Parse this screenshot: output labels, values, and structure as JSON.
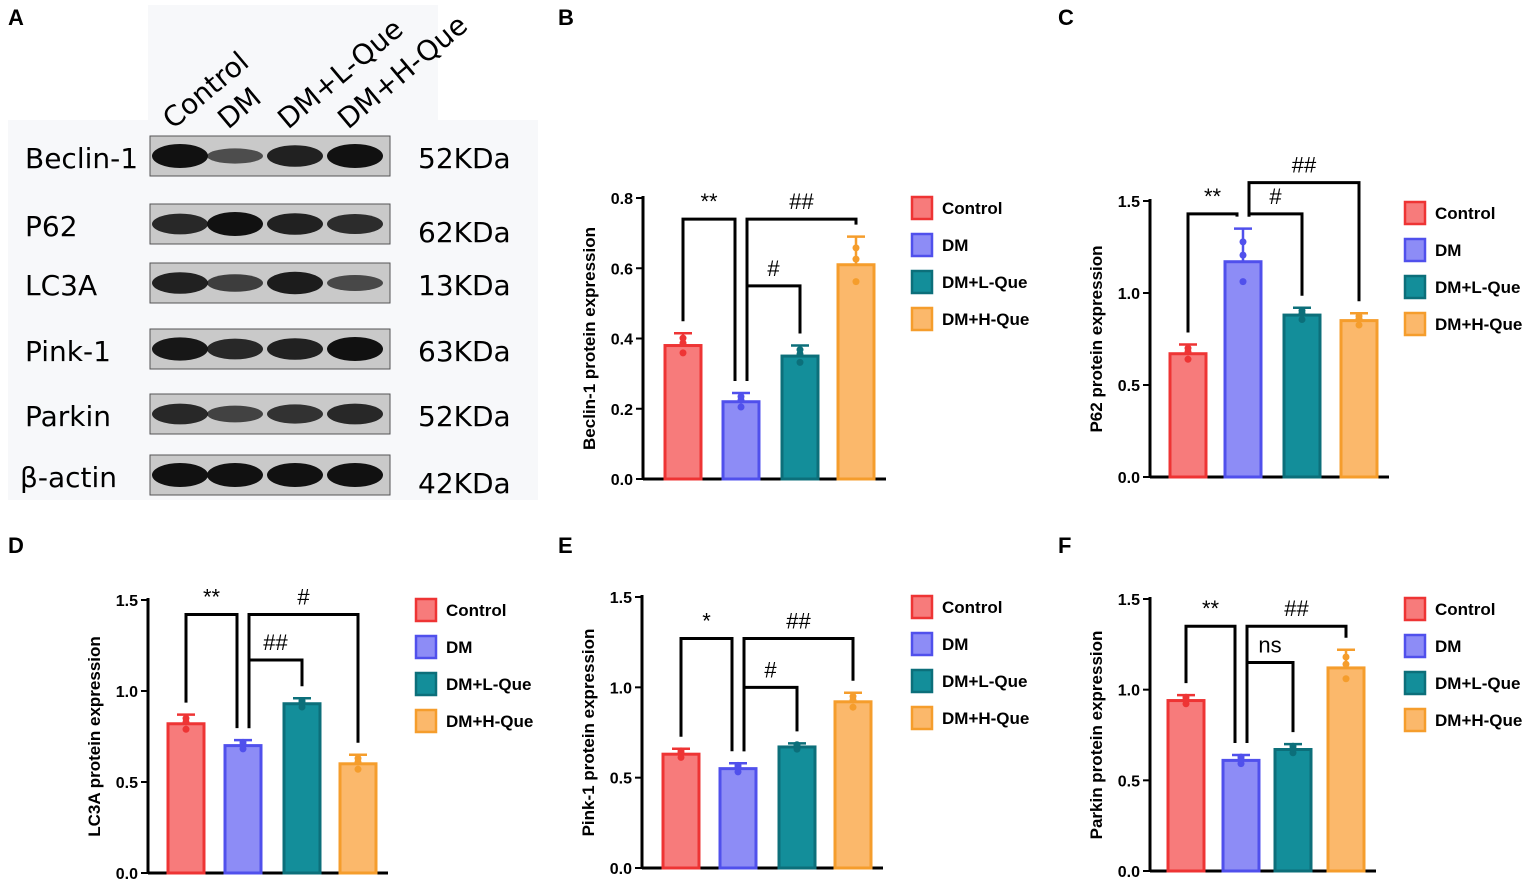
{
  "panel_labels": [
    "A",
    "B",
    "C",
    "D",
    "E",
    "F"
  ],
  "blot": {
    "lanes": [
      "Control",
      "DM",
      "DM+L-Que",
      "DM+H-Que"
    ],
    "rows": [
      {
        "protein": "Beclin-1",
        "size": "52KDa",
        "intensity": [
          1,
          0.45,
          0.85,
          1
        ]
      },
      {
        "protein": "P62",
        "size": "62KDa",
        "intensity": [
          0.8,
          1,
          0.85,
          0.75
        ]
      },
      {
        "protein": "LC3A",
        "size": "13KDa",
        "intensity": [
          0.85,
          0.6,
          0.9,
          0.5
        ]
      },
      {
        "protein": "Pink-1",
        "size": "63KDa",
        "intensity": [
          0.95,
          0.8,
          0.85,
          1
        ]
      },
      {
        "protein": "Parkin",
        "size": "52KDa",
        "intensity": [
          0.8,
          0.55,
          0.7,
          0.8
        ]
      },
      {
        "protein": "β-actin",
        "size": "42KDa",
        "intensity": [
          1,
          1,
          1,
          1
        ]
      }
    ]
  },
  "colors": {
    "fill": [
      "#f77b7b",
      "#8d8cf6",
      "#138e9a",
      "#fbb86b"
    ],
    "stroke": [
      "#ee3434",
      "#5050ec",
      "#0c6f7a",
      "#f59d2c"
    ]
  },
  "chart_data": [
    {
      "panel": "B",
      "type": "bar",
      "categories": [
        "Control",
        "DM",
        "DM+L-Que",
        "DM+H-Que"
      ],
      "values": [
        0.38,
        0.22,
        0.35,
        0.61
      ],
      "errors": [
        0.035,
        0.025,
        0.03,
        0.08
      ],
      "ylabel": "Beclin-1 protein expression",
      "ylim": [
        0,
        0.8
      ],
      "yticks": [
        "0.0",
        "0.2",
        "0.4",
        "0.6",
        "0.8"
      ],
      "legend": "right",
      "comparisons": [
        {
          "a": 0,
          "b": 1,
          "label": "**"
        },
        {
          "a": 1,
          "b": 2,
          "label": "#"
        },
        {
          "a": 1,
          "b": 3,
          "label": "##"
        }
      ]
    },
    {
      "panel": "C",
      "type": "bar",
      "categories": [
        "Control",
        "DM",
        "DM+L-Que",
        "DM+H-Que"
      ],
      "values": [
        0.67,
        1.17,
        0.88,
        0.85
      ],
      "errors": [
        0.05,
        0.18,
        0.04,
        0.04
      ],
      "ylabel": "P62 protein expression",
      "ylim": [
        0,
        1.5
      ],
      "yticks": [
        "0.0",
        "0.5",
        "1.0",
        "1.5"
      ],
      "legend": "right",
      "comparisons": [
        {
          "a": 0,
          "b": 1,
          "label": "**"
        },
        {
          "a": 1,
          "b": 2,
          "label": "#"
        },
        {
          "a": 1,
          "b": 3,
          "label": "##"
        }
      ]
    },
    {
      "panel": "D",
      "type": "bar",
      "categories": [
        "Control",
        "DM",
        "DM+L-Que",
        "DM+H-Que"
      ],
      "values": [
        0.82,
        0.7,
        0.93,
        0.6
      ],
      "errors": [
        0.05,
        0.03,
        0.03,
        0.05
      ],
      "ylabel": "LC3A protein expression",
      "ylim": [
        0,
        1.5
      ],
      "yticks": [
        "0.0",
        "0.5",
        "1.0",
        "1.5"
      ],
      "legend": "right",
      "comparisons": [
        {
          "a": 0,
          "b": 1,
          "label": "**"
        },
        {
          "a": 1,
          "b": 2,
          "label": "##"
        },
        {
          "a": 1,
          "b": 3,
          "label": "#"
        }
      ]
    },
    {
      "panel": "E",
      "type": "bar",
      "categories": [
        "Control",
        "DM",
        "DM+L-Que",
        "DM+H-Que"
      ],
      "values": [
        0.63,
        0.55,
        0.67,
        0.92
      ],
      "errors": [
        0.03,
        0.03,
        0.02,
        0.05
      ],
      "ylabel": "Pink-1 protein expression",
      "ylim": [
        0,
        1.5
      ],
      "yticks": [
        "0.0",
        "0.5",
        "1.0",
        "1.5"
      ],
      "legend": "right",
      "comparisons": [
        {
          "a": 0,
          "b": 1,
          "label": "*"
        },
        {
          "a": 1,
          "b": 2,
          "label": "#"
        },
        {
          "a": 1,
          "b": 3,
          "label": "##"
        }
      ]
    },
    {
      "panel": "F",
      "type": "bar",
      "categories": [
        "Control",
        "DM",
        "DM+L-Que",
        "DM+H-Que"
      ],
      "values": [
        0.94,
        0.61,
        0.67,
        1.12
      ],
      "errors": [
        0.03,
        0.03,
        0.03,
        0.1
      ],
      "ylabel": "Parkin protein expression",
      "ylim": [
        0,
        1.5
      ],
      "yticks": [
        "0.0",
        "0.5",
        "1.0",
        "1.5"
      ],
      "legend": "right",
      "comparisons": [
        {
          "a": 0,
          "b": 1,
          "label": "**"
        },
        {
          "a": 1,
          "b": 2,
          "label": "ns"
        },
        {
          "a": 1,
          "b": 3,
          "label": "##"
        }
      ]
    }
  ]
}
